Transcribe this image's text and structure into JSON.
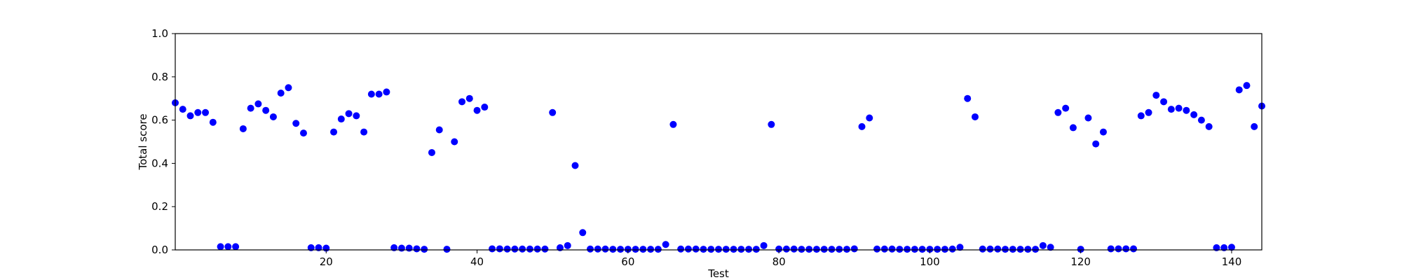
{
  "chart_data": {
    "type": "scatter",
    "title": "",
    "xlabel": "Test",
    "ylabel": "Total score",
    "xlim": [
      0,
      144
    ],
    "ylim": [
      0.0,
      1.0
    ],
    "xticks": [
      20,
      40,
      60,
      80,
      100,
      120,
      140
    ],
    "yticks": [
      0.0,
      0.2,
      0.4,
      0.6,
      0.8,
      1.0
    ],
    "xtick_labels": [
      "20",
      "40",
      "60",
      "80",
      "100",
      "120",
      "140"
    ],
    "ytick_labels": [
      "0.0",
      "0.2",
      "0.4",
      "0.6",
      "0.8",
      "1.0"
    ],
    "grid": false,
    "legend": "none",
    "marker_color": "#0000ff",
    "x": [
      0,
      1,
      2,
      3,
      4,
      5,
      6,
      7,
      8,
      9,
      10,
      11,
      12,
      13,
      14,
      15,
      16,
      17,
      18,
      19,
      20,
      21,
      22,
      23,
      24,
      25,
      26,
      27,
      28,
      29,
      30,
      31,
      32,
      33,
      34,
      35,
      36,
      37,
      38,
      39,
      40,
      41,
      42,
      43,
      44,
      45,
      46,
      47,
      48,
      49,
      50,
      51,
      52,
      53,
      54,
      55,
      56,
      57,
      58,
      59,
      60,
      61,
      62,
      63,
      64,
      65,
      66,
      67,
      68,
      69,
      70,
      71,
      72,
      73,
      74,
      75,
      76,
      77,
      78,
      79,
      80,
      81,
      82,
      83,
      84,
      85,
      86,
      87,
      88,
      89,
      90,
      91,
      92,
      93,
      94,
      95,
      96,
      97,
      98,
      99,
      100,
      101,
      102,
      103,
      104,
      105,
      106,
      107,
      108,
      109,
      110,
      111,
      112,
      113,
      114,
      115,
      116,
      117,
      118,
      119,
      120,
      121,
      122,
      123,
      124,
      125,
      126,
      127,
      128,
      129,
      130,
      131,
      132,
      133,
      134,
      135,
      136,
      137,
      138,
      139,
      140,
      141,
      142,
      143,
      144
    ],
    "y": [
      0.68,
      0.65,
      0.62,
      0.635,
      0.635,
      0.59,
      0.015,
      0.015,
      0.015,
      0.56,
      0.655,
      0.675,
      0.645,
      0.615,
      0.725,
      0.75,
      0.585,
      0.54,
      0.01,
      0.01,
      0.008,
      0.545,
      0.605,
      0.63,
      0.62,
      0.545,
      0.72,
      0.72,
      0.73,
      0.01,
      0.008,
      0.008,
      0.005,
      0.003,
      0.45,
      0.555,
      0.003,
      0.5,
      0.685,
      0.7,
      0.645,
      0.66,
      0.005,
      0.005,
      0.004,
      0.004,
      0.004,
      0.004,
      0.004,
      0.004,
      0.635,
      0.01,
      0.02,
      0.39,
      0.08,
      0.004,
      0.004,
      0.004,
      0.003,
      0.003,
      0.003,
      0.003,
      0.003,
      0.003,
      0.003,
      0.025,
      0.58,
      0.004,
      0.004,
      0.004,
      0.003,
      0.003,
      0.003,
      0.003,
      0.003,
      0.003,
      0.003,
      0.003,
      0.02,
      0.58,
      0.004,
      0.004,
      0.004,
      0.003,
      0.003,
      0.003,
      0.003,
      0.003,
      0.003,
      0.003,
      0.005,
      0.57,
      0.61,
      0.004,
      0.004,
      0.004,
      0.003,
      0.003,
      0.003,
      0.003,
      0.003,
      0.003,
      0.003,
      0.004,
      0.012,
      0.7,
      0.615,
      0.004,
      0.004,
      0.004,
      0.003,
      0.003,
      0.003,
      0.003,
      0.003,
      0.02,
      0.012,
      0.635,
      0.655,
      0.565,
      0.003,
      0.61,
      0.49,
      0.545,
      0.005,
      0.005,
      0.005,
      0.005,
      0.62,
      0.635,
      0.715,
      0.685,
      0.65,
      0.655,
      0.645,
      0.625,
      0.6,
      0.57,
      0.01,
      0.01,
      0.012,
      0.74,
      0.76,
      0.57,
      0.665
    ]
  }
}
